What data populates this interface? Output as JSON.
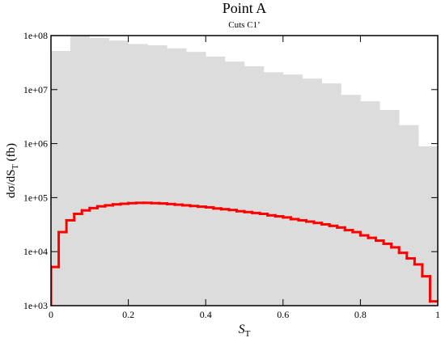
{
  "chart_data": {
    "type": "histogram",
    "title": "Point A",
    "subtitle": "Cuts C1’",
    "xlabel": "S",
    "xlabel_sub": "T",
    "ylabel": "dσ/dS",
    "ylabel_sub": "T",
    "ylabel_unit": " (fb)",
    "log_y": true,
    "xlim": [
      0,
      1
    ],
    "xticks": [
      0,
      0.2,
      0.4,
      0.6,
      0.8,
      1
    ],
    "ylim": [
      1000,
      100000000
    ],
    "yticks": [
      {
        "value": 1000,
        "label": "1e+03"
      },
      {
        "value": 10000,
        "label": "1e+04"
      },
      {
        "value": 100000,
        "label": "1e+05"
      },
      {
        "value": 1000000,
        "label": "1e+06"
      },
      {
        "value": 10000000,
        "label": "1e+07"
      },
      {
        "value": 100000000,
        "label": "1e+08"
      }
    ],
    "series": [
      {
        "style": "filled",
        "color": "#dcdcdc",
        "bins": [
          0,
          0.05,
          0.1,
          0.15,
          0.2,
          0.25,
          0.3,
          0.35,
          0.4,
          0.45,
          0.5,
          0.55,
          0.6,
          0.65,
          0.7,
          0.75,
          0.8,
          0.85,
          0.9,
          0.95,
          1
        ],
        "values": [
          52000000,
          100000000,
          90000000,
          81000000,
          70000000,
          66000000,
          58000000,
          50000000,
          41000000,
          33000000,
          27000000,
          21000000,
          19000000,
          16000000,
          13000000,
          8000000,
          6100000,
          4200000,
          2200000,
          890000
        ]
      },
      {
        "style": "step",
        "color": "#ff0000",
        "bins": [
          0,
          0.02,
          0.04,
          0.06,
          0.08,
          0.1,
          0.12,
          0.14,
          0.16,
          0.18,
          0.2,
          0.22,
          0.24,
          0.26,
          0.28,
          0.3,
          0.32,
          0.34,
          0.36,
          0.38,
          0.4,
          0.42,
          0.44,
          0.46,
          0.48,
          0.5,
          0.52,
          0.54,
          0.56,
          0.58,
          0.6,
          0.62,
          0.64,
          0.66,
          0.68,
          0.7,
          0.72,
          0.74,
          0.76,
          0.78,
          0.8,
          0.82,
          0.84,
          0.86,
          0.88,
          0.9,
          0.92,
          0.94,
          0.96,
          0.98,
          1
        ],
        "values": [
          5200,
          23000,
          38000,
          50000,
          58000,
          64000,
          69000,
          72000,
          75000,
          77000,
          79000,
          80000,
          80000,
          79000,
          78000,
          76000,
          74000,
          72000,
          70000,
          68000,
          66000,
          63000,
          61000,
          59000,
          56000,
          54000,
          52000,
          50000,
          47000,
          45000,
          43000,
          40000,
          38000,
          36000,
          34000,
          32000,
          30000,
          28000,
          25000,
          23000,
          20000,
          18000,
          16000,
          14000,
          12000,
          9500,
          7500,
          5800,
          3500,
          1200
        ]
      }
    ]
  }
}
